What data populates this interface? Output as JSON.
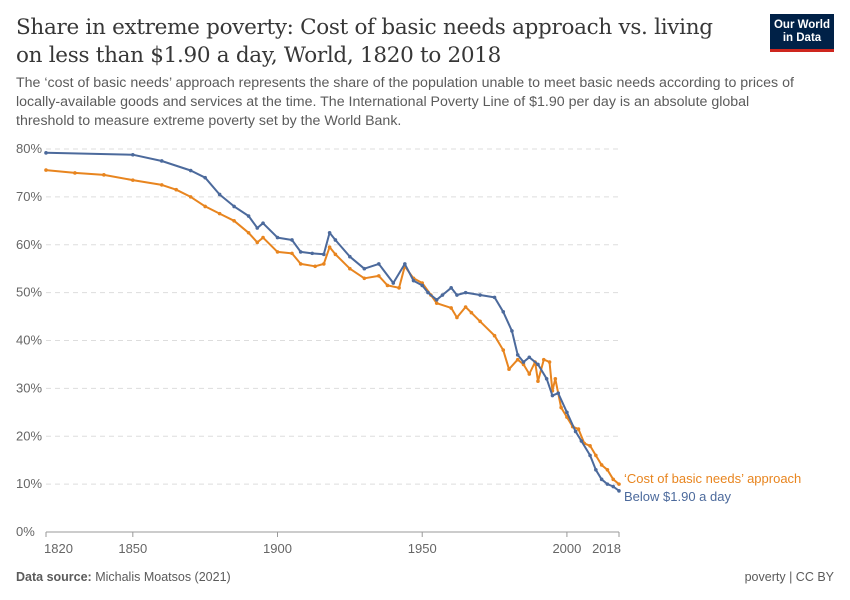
{
  "header": {
    "title": "Share in extreme poverty: Cost of basic needs approach vs. living on less than $1.90 a day, World, 1820 to 2018",
    "subtitle": "The ‘cost of basic needs’ approach represents the share of the population unable to meet basic needs according to prices of locally-available goods and services at the time. The International Poverty Line of $1.90 per day is an absolute global threshold to measure extreme poverty set by the World Bank.",
    "logo": "Our World in Data"
  },
  "footer": {
    "source_label": "Data source:",
    "source": "Michalis Moatsos (2021)",
    "license": "poverty | CC BY"
  },
  "chart_data": {
    "type": "line",
    "xlim": [
      1820,
      2018
    ],
    "ylim": [
      0,
      80
    ],
    "x_ticks": [
      1820,
      1850,
      1900,
      1950,
      2000,
      2018
    ],
    "y_ticks": [
      0,
      10,
      20,
      30,
      40,
      50,
      60,
      70,
      80
    ],
    "y_tick_labels": [
      "0%",
      "10%",
      "20%",
      "30%",
      "40%",
      "50%",
      "60%",
      "70%",
      "80%"
    ],
    "grid": "horizontal dashed",
    "legend": "inline labels at right end",
    "series": [
      {
        "name": "‘Cost of basic needs’ approach",
        "color": "#e8851f",
        "x": [
          1820,
          1830,
          1840,
          1850,
          1860,
          1865,
          1870,
          1875,
          1880,
          1885,
          1890,
          1893,
          1895,
          1900,
          1905,
          1908,
          1913,
          1916,
          1918,
          1920,
          1925,
          1930,
          1935,
          1938,
          1942,
          1944,
          1947,
          1950,
          1953,
          1955,
          1960,
          1962,
          1965,
          1967,
          1970,
          1975,
          1978,
          1980,
          1983,
          1985,
          1987,
          1989,
          1990,
          1992,
          1994,
          1995,
          1996,
          1998,
          2000,
          2002,
          2004,
          2006,
          2008,
          2010,
          2012,
          2014,
          2016,
          2018
        ],
        "y": [
          75.6,
          75,
          74.6,
          73.5,
          72.5,
          71.5,
          70,
          68,
          66.5,
          65,
          62.5,
          60.5,
          61.5,
          58.5,
          58.2,
          56,
          55.5,
          56,
          59.5,
          58,
          55,
          53,
          53.5,
          51.5,
          51,
          55.5,
          53,
          52,
          49.5,
          47.8,
          46.8,
          44.8,
          47,
          45.8,
          44,
          41,
          38,
          34,
          36,
          35,
          33,
          35.5,
          31.5,
          36,
          35.5,
          29.5,
          32,
          26,
          24,
          22,
          21.5,
          18.5,
          18,
          16,
          14,
          13,
          11,
          10
        ]
      },
      {
        "name": "Below $1.90 a day",
        "color": "#4c6a9c",
        "x": [
          1820,
          1850,
          1860,
          1870,
          1875,
          1880,
          1885,
          1890,
          1893,
          1895,
          1900,
          1905,
          1908,
          1912,
          1916,
          1918,
          1920,
          1925,
          1930,
          1935,
          1940,
          1944,
          1947,
          1950,
          1952,
          1955,
          1957,
          1960,
          1962,
          1965,
          1970,
          1975,
          1978,
          1981,
          1983,
          1985,
          1987,
          1990,
          1993,
          1995,
          1997,
          2000,
          2003,
          2005,
          2008,
          2010,
          2012,
          2014,
          2016,
          2018
        ],
        "y": [
          79.2,
          78.8,
          77.5,
          75.5,
          74,
          70.5,
          68,
          66,
          63.5,
          64.5,
          61.5,
          61,
          58.5,
          58.2,
          58,
          62.5,
          61,
          57.5,
          55,
          56,
          52,
          56,
          52.5,
          51.5,
          50,
          48.5,
          49.5,
          51,
          49.5,
          50,
          49.5,
          49,
          46,
          42,
          37,
          35.5,
          36.5,
          35,
          32,
          28.5,
          29,
          25,
          21,
          19,
          16,
          13,
          11,
          10,
          9.5,
          8.6
        ]
      }
    ]
  }
}
